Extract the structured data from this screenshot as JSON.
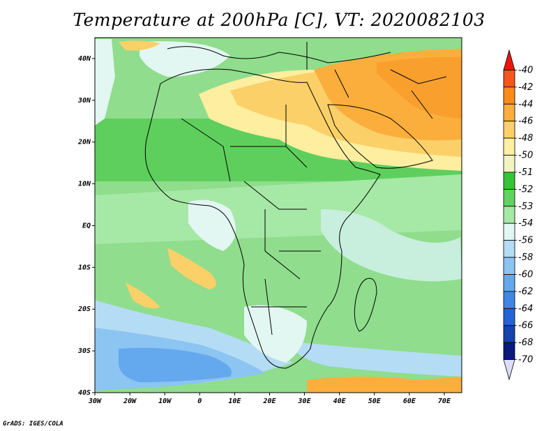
{
  "title": "Temperature at 200hPa [C], VT: 2020082103",
  "credit": "GrADS: IGES/COLA",
  "map": {
    "region": "Africa",
    "lon_range": [
      -30,
      75
    ],
    "lat_range": [
      -40,
      45
    ],
    "x_ticks": [
      "30W",
      "20W",
      "10W",
      "0",
      "10E",
      "20E",
      "30E",
      "40E",
      "50E",
      "60E",
      "70E"
    ],
    "y_ticks": [
      "40N",
      "30N",
      "20N",
      "10N",
      "EQ",
      "10S",
      "20S",
      "30S",
      "40S"
    ]
  },
  "colorbar": {
    "levels": [
      "-40",
      "-42",
      "-44",
      "-46",
      "-48",
      "-50",
      "-51",
      "-52",
      "-53",
      "-54",
      "-56",
      "-58",
      "-60",
      "-62",
      "-64",
      "-66",
      "-68",
      "-70"
    ],
    "colors": [
      "#e8180c",
      "#f4561c",
      "#f88c1a",
      "#fbae3c",
      "#fbd068",
      "#fdeea0",
      "#f3f5c0",
      "#34c436",
      "#60d45e",
      "#a6e8a6",
      "#e2f6f2",
      "#b4dcf4",
      "#8cc4f2",
      "#64a8ee",
      "#3f86e6",
      "#2464d4",
      "#1444ac",
      "#0a1a7e",
      "#dcdcfc"
    ]
  },
  "colors": {
    "background": "#ffffff",
    "map_base": "#dcf6ef",
    "land_border": "#000000"
  }
}
